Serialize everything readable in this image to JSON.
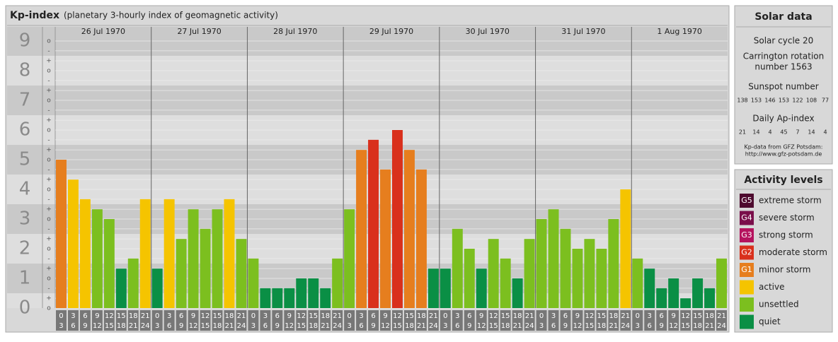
{
  "chart_data": {
    "type": "bar",
    "title": "Kp-index",
    "subtitle": "(planetary 3-hourly index of geomagnetic activity)",
    "ylim": [
      0,
      9
    ],
    "yticks": [
      0,
      1,
      2,
      3,
      4,
      5,
      6,
      7,
      8,
      9
    ],
    "subticks": [
      {
        "value": 0,
        "label": "o"
      },
      {
        "value": 0.33,
        "label": "+"
      },
      {
        "value": 0.67,
        "label": "-"
      },
      {
        "value": 1,
        "label": "o"
      },
      {
        "value": 1.33,
        "label": "+"
      },
      {
        "value": 1.67,
        "label": "-"
      },
      {
        "value": 2,
        "label": "o"
      },
      {
        "value": 2.33,
        "label": "+"
      },
      {
        "value": 2.67,
        "label": "-"
      },
      {
        "value": 3,
        "label": "o"
      },
      {
        "value": 3.33,
        "label": "+"
      },
      {
        "value": 3.67,
        "label": "-"
      },
      {
        "value": 4,
        "label": "o"
      },
      {
        "value": 4.33,
        "label": "+"
      },
      {
        "value": 4.67,
        "label": "-"
      },
      {
        "value": 5,
        "label": "o"
      },
      {
        "value": 5.33,
        "label": "+"
      },
      {
        "value": 5.67,
        "label": "-"
      },
      {
        "value": 6,
        "label": "o"
      },
      {
        "value": 6.33,
        "label": "+"
      },
      {
        "value": 6.67,
        "label": "-"
      },
      {
        "value": 7,
        "label": "o"
      },
      {
        "value": 7.33,
        "label": "+"
      },
      {
        "value": 7.67,
        "label": "-"
      },
      {
        "value": 8,
        "label": "o"
      },
      {
        "value": 8.33,
        "label": "+"
      },
      {
        "value": 8.67,
        "label": "-"
      },
      {
        "value": 9,
        "label": "o"
      }
    ],
    "hour_edges": [
      0,
      3,
      6,
      9,
      12,
      15,
      18,
      21,
      24
    ],
    "days": [
      {
        "label": "26 Jul 1970",
        "values": [
          5,
          4.33,
          3.67,
          3.33,
          3,
          1.33,
          1.67,
          3.67
        ],
        "colors": [
          "#e67e1e",
          "#f5c400",
          "#f5c400",
          "#7cbf1f",
          "#7cbf1f",
          "#0a8f45",
          "#7cbf1f",
          "#f5c400"
        ]
      },
      {
        "label": "27 Jul 1970",
        "values": [
          1.33,
          3.67,
          2.33,
          3.33,
          2.67,
          3.33,
          3.67,
          2.33
        ],
        "colors": [
          "#0a8f45",
          "#f5c400",
          "#7cbf1f",
          "#7cbf1f",
          "#7cbf1f",
          "#7cbf1f",
          "#f5c400",
          "#7cbf1f"
        ]
      },
      {
        "label": "28 Jul 1970",
        "values": [
          1.67,
          0.67,
          0.67,
          0.67,
          1,
          1,
          0.67,
          1.67
        ],
        "colors": [
          "#7cbf1f",
          "#0a8f45",
          "#0a8f45",
          "#0a8f45",
          "#0a8f45",
          "#0a8f45",
          "#0a8f45",
          "#7cbf1f"
        ]
      },
      {
        "label": "29 Jul 1970",
        "values": [
          3.33,
          5.33,
          5.67,
          4.67,
          6,
          5.33,
          4.67,
          1.33
        ],
        "colors": [
          "#7cbf1f",
          "#e67e1e",
          "#d9301c",
          "#e67e1e",
          "#d9301c",
          "#e67e1e",
          "#e67e1e",
          "#0a8f45"
        ]
      },
      {
        "label": "30 Jul 1970",
        "values": [
          1.33,
          2.67,
          2,
          1.33,
          2.33,
          1.67,
          1,
          2.33
        ],
        "colors": [
          "#0a8f45",
          "#7cbf1f",
          "#7cbf1f",
          "#0a8f45",
          "#7cbf1f",
          "#7cbf1f",
          "#0a8f45",
          "#7cbf1f"
        ]
      },
      {
        "label": "31 Jul 1970",
        "values": [
          3,
          3.33,
          2.67,
          2,
          2.33,
          2,
          3,
          4
        ],
        "colors": [
          "#7cbf1f",
          "#7cbf1f",
          "#7cbf1f",
          "#7cbf1f",
          "#7cbf1f",
          "#7cbf1f",
          "#7cbf1f",
          "#f5c400"
        ]
      },
      {
        "label": "1 Aug 1970",
        "values": [
          1.67,
          1.33,
          0.67,
          1,
          0.33,
          1,
          0.67,
          1.67
        ],
        "colors": [
          "#7cbf1f",
          "#0a8f45",
          "#0a8f45",
          "#0a8f45",
          "#0a8f45",
          "#0a8f45",
          "#0a8f45",
          "#7cbf1f"
        ]
      }
    ]
  },
  "solar_data": {
    "title": "Solar data",
    "cycle": "Solar cycle 20",
    "carrington": [
      "Carrington rotation",
      "number 1563"
    ],
    "sunspot_title": "Sunspot number",
    "sunspots": [
      138,
      153,
      146,
      153,
      122,
      108,
      77
    ],
    "ap_title": "Daily Ap-index",
    "ap": [
      21,
      14,
      4,
      45,
      7,
      14,
      4
    ],
    "source": [
      "Kp-data from GFZ Potsdam:",
      "http://www.gfz-potsdam.de"
    ]
  },
  "activity_levels": {
    "title": "Activity levels",
    "items": [
      {
        "badge": "G5",
        "label": "extreme storm",
        "color": "#4d0a2e"
      },
      {
        "badge": "G4",
        "label": "severe storm",
        "color": "#7a0e4a"
      },
      {
        "badge": "G3",
        "label": "strong storm",
        "color": "#b5135e"
      },
      {
        "badge": "G2",
        "label": "moderate storm",
        "color": "#d9301c"
      },
      {
        "badge": "G1",
        "label": "minor storm",
        "color": "#e67e1e"
      },
      {
        "label": "active",
        "color": "#f5c400"
      },
      {
        "label": "unsettled",
        "color": "#7cbf1f"
      },
      {
        "label": "quiet",
        "color": "#0a8f45"
      }
    ]
  }
}
